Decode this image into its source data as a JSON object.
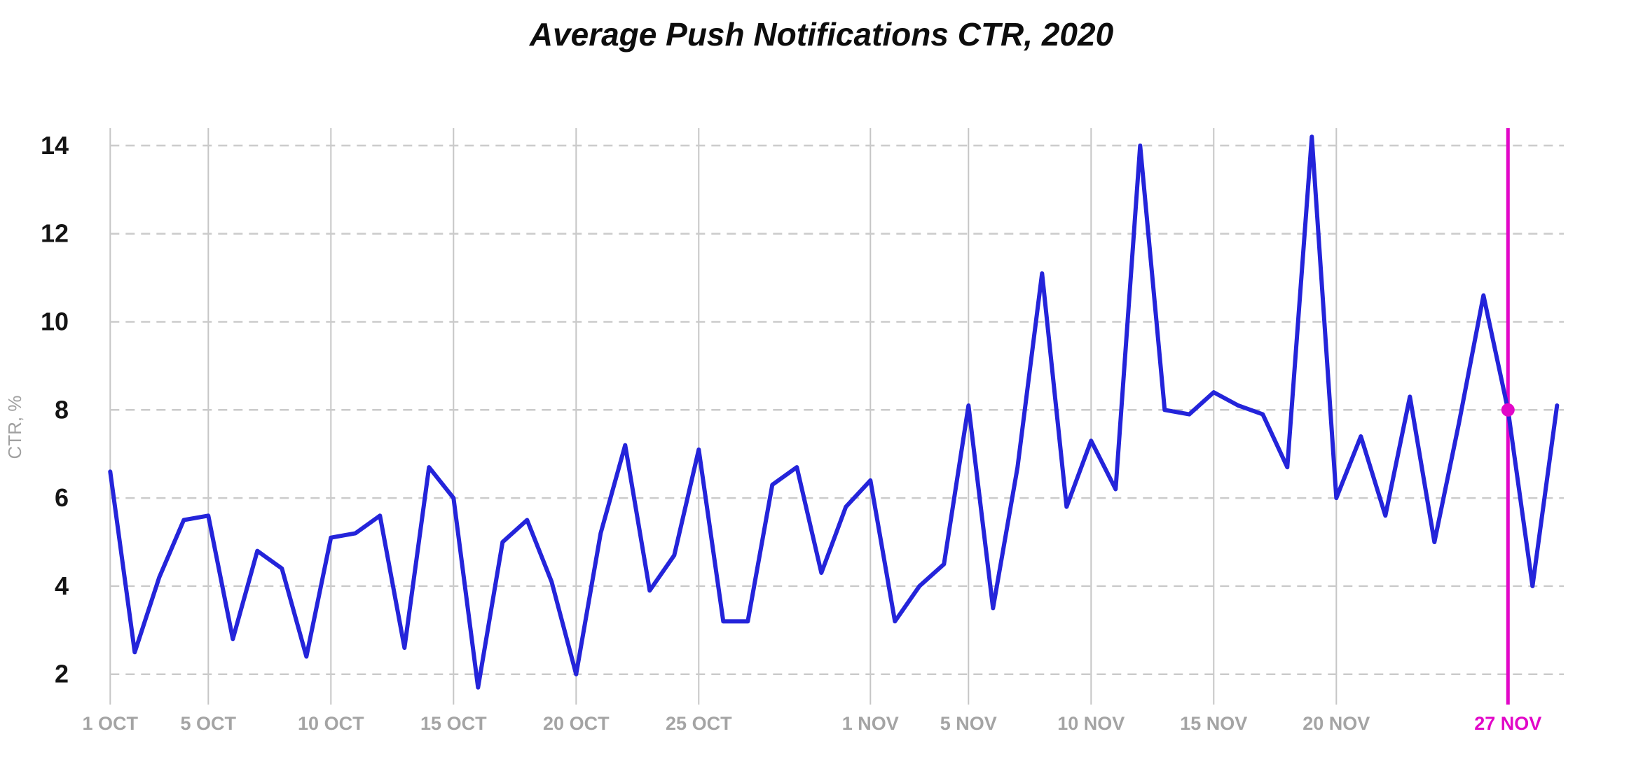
{
  "chart_title": "Average Push Notifications CTR, 2020",
  "colors": {
    "line": "#2424da",
    "highlight": "#e207c8",
    "grid_vertical": "#c6c6c6",
    "grid_dashed": "#cbcbcb",
    "x_tick_text": "#a4a4a4",
    "y_tick_text": "#141414",
    "y_axis_title_text": "#a0a0a0",
    "title_text": "#0d0d0d",
    "background": "#ffffff"
  },
  "chart_data": {
    "type": "line",
    "title": "Average Push Notifications CTR, 2020",
    "xlabel": "",
    "ylabel": "CTR, %",
    "ylim": [
      2,
      14
    ],
    "y_ticks": [
      2,
      4,
      6,
      8,
      10,
      12,
      14
    ],
    "grid": "horizontal-dashed and vertical-solid at labeled dates",
    "legend_position": "none",
    "x_ticks": [
      {
        "label": "1 OCT",
        "day_index": 0,
        "highlighted": false
      },
      {
        "label": "5 OCT",
        "day_index": 4,
        "highlighted": false
      },
      {
        "label": "10 OCT",
        "day_index": 9,
        "highlighted": false
      },
      {
        "label": "15 OCT",
        "day_index": 14,
        "highlighted": false
      },
      {
        "label": "20 OCT",
        "day_index": 19,
        "highlighted": false
      },
      {
        "label": "25 OCT",
        "day_index": 24,
        "highlighted": false
      },
      {
        "label": "1 NOV",
        "day_index": 31,
        "highlighted": false
      },
      {
        "label": "5 NOV",
        "day_index": 35,
        "highlighted": false
      },
      {
        "label": "10 NOV",
        "day_index": 40,
        "highlighted": false
      },
      {
        "label": "15 NOV",
        "day_index": 45,
        "highlighted": false
      },
      {
        "label": "20 NOV",
        "day_index": 50,
        "highlighted": false
      },
      {
        "label": "27 NOV",
        "day_index": 57,
        "highlighted": true
      }
    ],
    "highlight": {
      "date": "27 Nov",
      "day_index": 57,
      "value": 8.0
    },
    "series": [
      {
        "name": "Average Push Notifications CTR",
        "points": [
          {
            "date": "1 Oct",
            "value": 6.6
          },
          {
            "date": "2 Oct",
            "value": 2.5
          },
          {
            "date": "3 Oct",
            "value": 4.2
          },
          {
            "date": "4 Oct",
            "value": 5.5
          },
          {
            "date": "5 Oct",
            "value": 5.6
          },
          {
            "date": "6 Oct",
            "value": 2.8
          },
          {
            "date": "7 Oct",
            "value": 4.8
          },
          {
            "date": "8 Oct",
            "value": 4.4
          },
          {
            "date": "9 Oct",
            "value": 2.4
          },
          {
            "date": "10 Oct",
            "value": 5.1
          },
          {
            "date": "11 Oct",
            "value": 5.2
          },
          {
            "date": "12 Oct",
            "value": 5.6
          },
          {
            "date": "13 Oct",
            "value": 2.6
          },
          {
            "date": "14 Oct",
            "value": 6.7
          },
          {
            "date": "15 Oct",
            "value": 6.0
          },
          {
            "date": "16 Oct",
            "value": 1.7
          },
          {
            "date": "17 Oct",
            "value": 5.0
          },
          {
            "date": "18 Oct",
            "value": 5.5
          },
          {
            "date": "19 Oct",
            "value": 4.1
          },
          {
            "date": "20 Oct",
            "value": 2.0
          },
          {
            "date": "21 Oct",
            "value": 5.2
          },
          {
            "date": "22 Oct",
            "value": 7.2
          },
          {
            "date": "23 Oct",
            "value": 3.9
          },
          {
            "date": "24 Oct",
            "value": 4.7
          },
          {
            "date": "25 Oct",
            "value": 7.1
          },
          {
            "date": "26 Oct",
            "value": 3.2
          },
          {
            "date": "27 Oct",
            "value": 3.2
          },
          {
            "date": "28 Oct",
            "value": 6.3
          },
          {
            "date": "29 Oct",
            "value": 6.7
          },
          {
            "date": "30 Oct",
            "value": 4.3
          },
          {
            "date": "31 Oct",
            "value": 5.8
          },
          {
            "date": "1 Nov",
            "value": 6.4
          },
          {
            "date": "2 Nov",
            "value": 3.2
          },
          {
            "date": "3 Nov",
            "value": 4.0
          },
          {
            "date": "4 Nov",
            "value": 4.5
          },
          {
            "date": "5 Nov",
            "value": 8.1
          },
          {
            "date": "6 Nov",
            "value": 3.5
          },
          {
            "date": "7 Nov",
            "value": 6.7
          },
          {
            "date": "8 Nov",
            "value": 11.1
          },
          {
            "date": "9 Nov",
            "value": 5.8
          },
          {
            "date": "10 Nov",
            "value": 7.3
          },
          {
            "date": "11 Nov",
            "value": 6.2
          },
          {
            "date": "12 Nov",
            "value": 14.0
          },
          {
            "date": "13 Nov",
            "value": 8.0
          },
          {
            "date": "14 Nov",
            "value": 7.9
          },
          {
            "date": "15 Nov",
            "value": 8.4
          },
          {
            "date": "16 Nov",
            "value": 8.1
          },
          {
            "date": "17 Nov",
            "value": 7.9
          },
          {
            "date": "18 Nov",
            "value": 6.7
          },
          {
            "date": "19 Nov",
            "value": 14.2
          },
          {
            "date": "20 Nov",
            "value": 6.0
          },
          {
            "date": "21 Nov",
            "value": 7.4
          },
          {
            "date": "22 Nov",
            "value": 5.6
          },
          {
            "date": "23 Nov",
            "value": 8.3
          },
          {
            "date": "24 Nov",
            "value": 5.0
          },
          {
            "date": "25 Nov",
            "value": 7.7
          },
          {
            "date": "26 Nov",
            "value": 10.6
          },
          {
            "date": "27 Nov",
            "value": 8.0
          },
          {
            "date": "28 Nov",
            "value": 4.0
          },
          {
            "date": "29 Nov",
            "value": 8.1
          }
        ]
      }
    ]
  }
}
